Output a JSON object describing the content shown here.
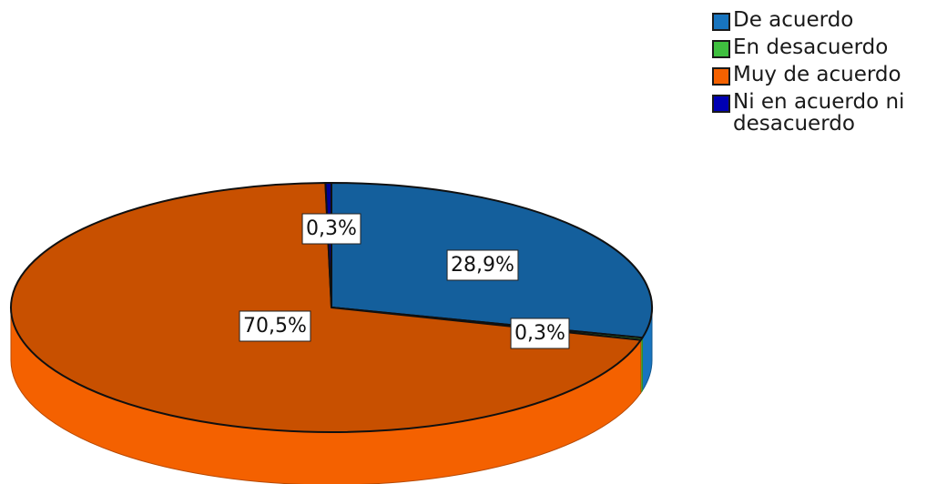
{
  "chart_data": {
    "type": "pie",
    "title": "",
    "three_d": true,
    "legend_position": "top-right",
    "slices": [
      {
        "name": "De acuerdo",
        "value": 28.9,
        "label": "28,9%",
        "color": "#1874be"
      },
      {
        "name": "En desacuerdo",
        "value": 0.3,
        "label": "0,3%",
        "color": "#3fbf3f"
      },
      {
        "name": "Muy de acuerdo",
        "value": 70.5,
        "label": "70,5%",
        "color": "#f46100"
      },
      {
        "name": "Ni en acuerdo ni desacuerdo",
        "value": 0.3,
        "label": "0,3%",
        "color": "#0000b4"
      }
    ]
  }
}
